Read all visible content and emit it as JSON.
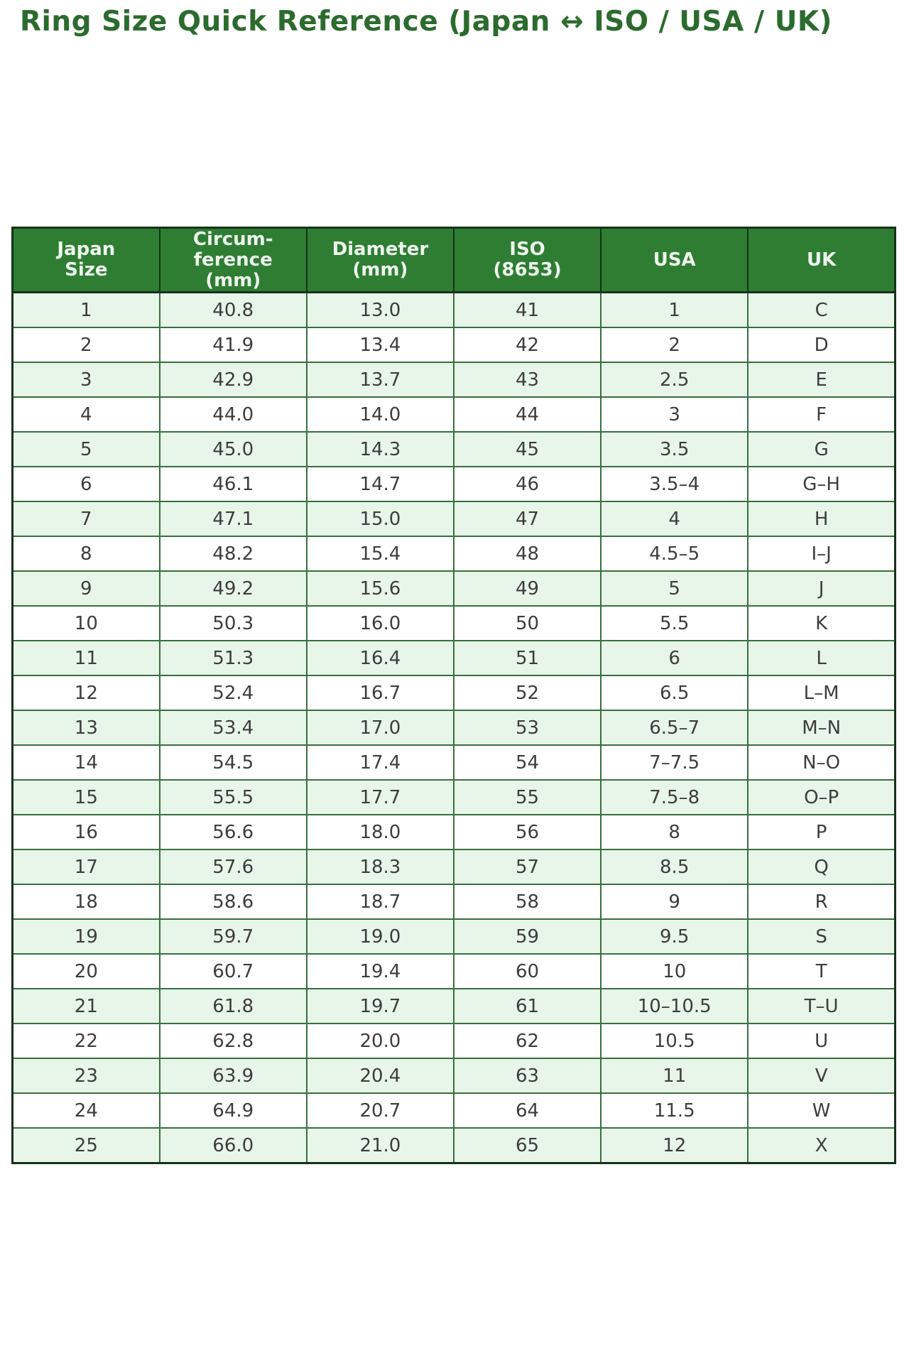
{
  "page": {
    "title": "Ring Size Quick Reference (Japan ↔ ISO / USA / UK)"
  },
  "colors": {
    "title_text": "#2c6b2e",
    "header_bg": "#2e7d33",
    "header_text": "#eef7ee",
    "row_alt_bg": "#e8f5e9",
    "row_bg": "#ffffff",
    "border_dark": "#16321a",
    "border_inner": "#35703c",
    "cell_text": "#3d3d3d"
  },
  "chart_data": {
    "type": "table",
    "title": "Ring Size Quick Reference (Japan ↔ ISO / USA / UK)",
    "columns": [
      "Japan\nSize",
      "Circum-\nference\n(mm)",
      "Diameter\n(mm)",
      "ISO\n(8653)",
      "USA",
      "UK"
    ],
    "rows": [
      [
        "1",
        "40.8",
        "13.0",
        "41",
        "1",
        "C"
      ],
      [
        "2",
        "41.9",
        "13.4",
        "42",
        "2",
        "D"
      ],
      [
        "3",
        "42.9",
        "13.7",
        "43",
        "2.5",
        "E"
      ],
      [
        "4",
        "44.0",
        "14.0",
        "44",
        "3",
        "F"
      ],
      [
        "5",
        "45.0",
        "14.3",
        "45",
        "3.5",
        "G"
      ],
      [
        "6",
        "46.1",
        "14.7",
        "46",
        "3.5–4",
        "G–H"
      ],
      [
        "7",
        "47.1",
        "15.0",
        "47",
        "4",
        "H"
      ],
      [
        "8",
        "48.2",
        "15.4",
        "48",
        "4.5–5",
        "I–J"
      ],
      [
        "9",
        "49.2",
        "15.6",
        "49",
        "5",
        "J"
      ],
      [
        "10",
        "50.3",
        "16.0",
        "50",
        "5.5",
        "K"
      ],
      [
        "11",
        "51.3",
        "16.4",
        "51",
        "6",
        "L"
      ],
      [
        "12",
        "52.4",
        "16.7",
        "52",
        "6.5",
        "L–M"
      ],
      [
        "13",
        "53.4",
        "17.0",
        "53",
        "6.5–7",
        "M–N"
      ],
      [
        "14",
        "54.5",
        "17.4",
        "54",
        "7–7.5",
        "N–O"
      ],
      [
        "15",
        "55.5",
        "17.7",
        "55",
        "7.5–8",
        "O–P"
      ],
      [
        "16",
        "56.6",
        "18.0",
        "56",
        "8",
        "P"
      ],
      [
        "17",
        "57.6",
        "18.3",
        "57",
        "8.5",
        "Q"
      ],
      [
        "18",
        "58.6",
        "18.7",
        "58",
        "9",
        "R"
      ],
      [
        "19",
        "59.7",
        "19.0",
        "59",
        "9.5",
        "S"
      ],
      [
        "20",
        "60.7",
        "19.4",
        "60",
        "10",
        "T"
      ],
      [
        "21",
        "61.8",
        "19.7",
        "61",
        "10–10.5",
        "T–U"
      ],
      [
        "22",
        "62.8",
        "20.0",
        "62",
        "10.5",
        "U"
      ],
      [
        "23",
        "63.9",
        "20.4",
        "63",
        "11",
        "V"
      ],
      [
        "24",
        "64.9",
        "20.7",
        "64",
        "11.5",
        "W"
      ],
      [
        "25",
        "66.0",
        "21.0",
        "65",
        "12",
        "X"
      ]
    ],
    "layout": {
      "striped": true,
      "stripe_rows": "odd",
      "grid": true,
      "header_position": "top"
    }
  }
}
